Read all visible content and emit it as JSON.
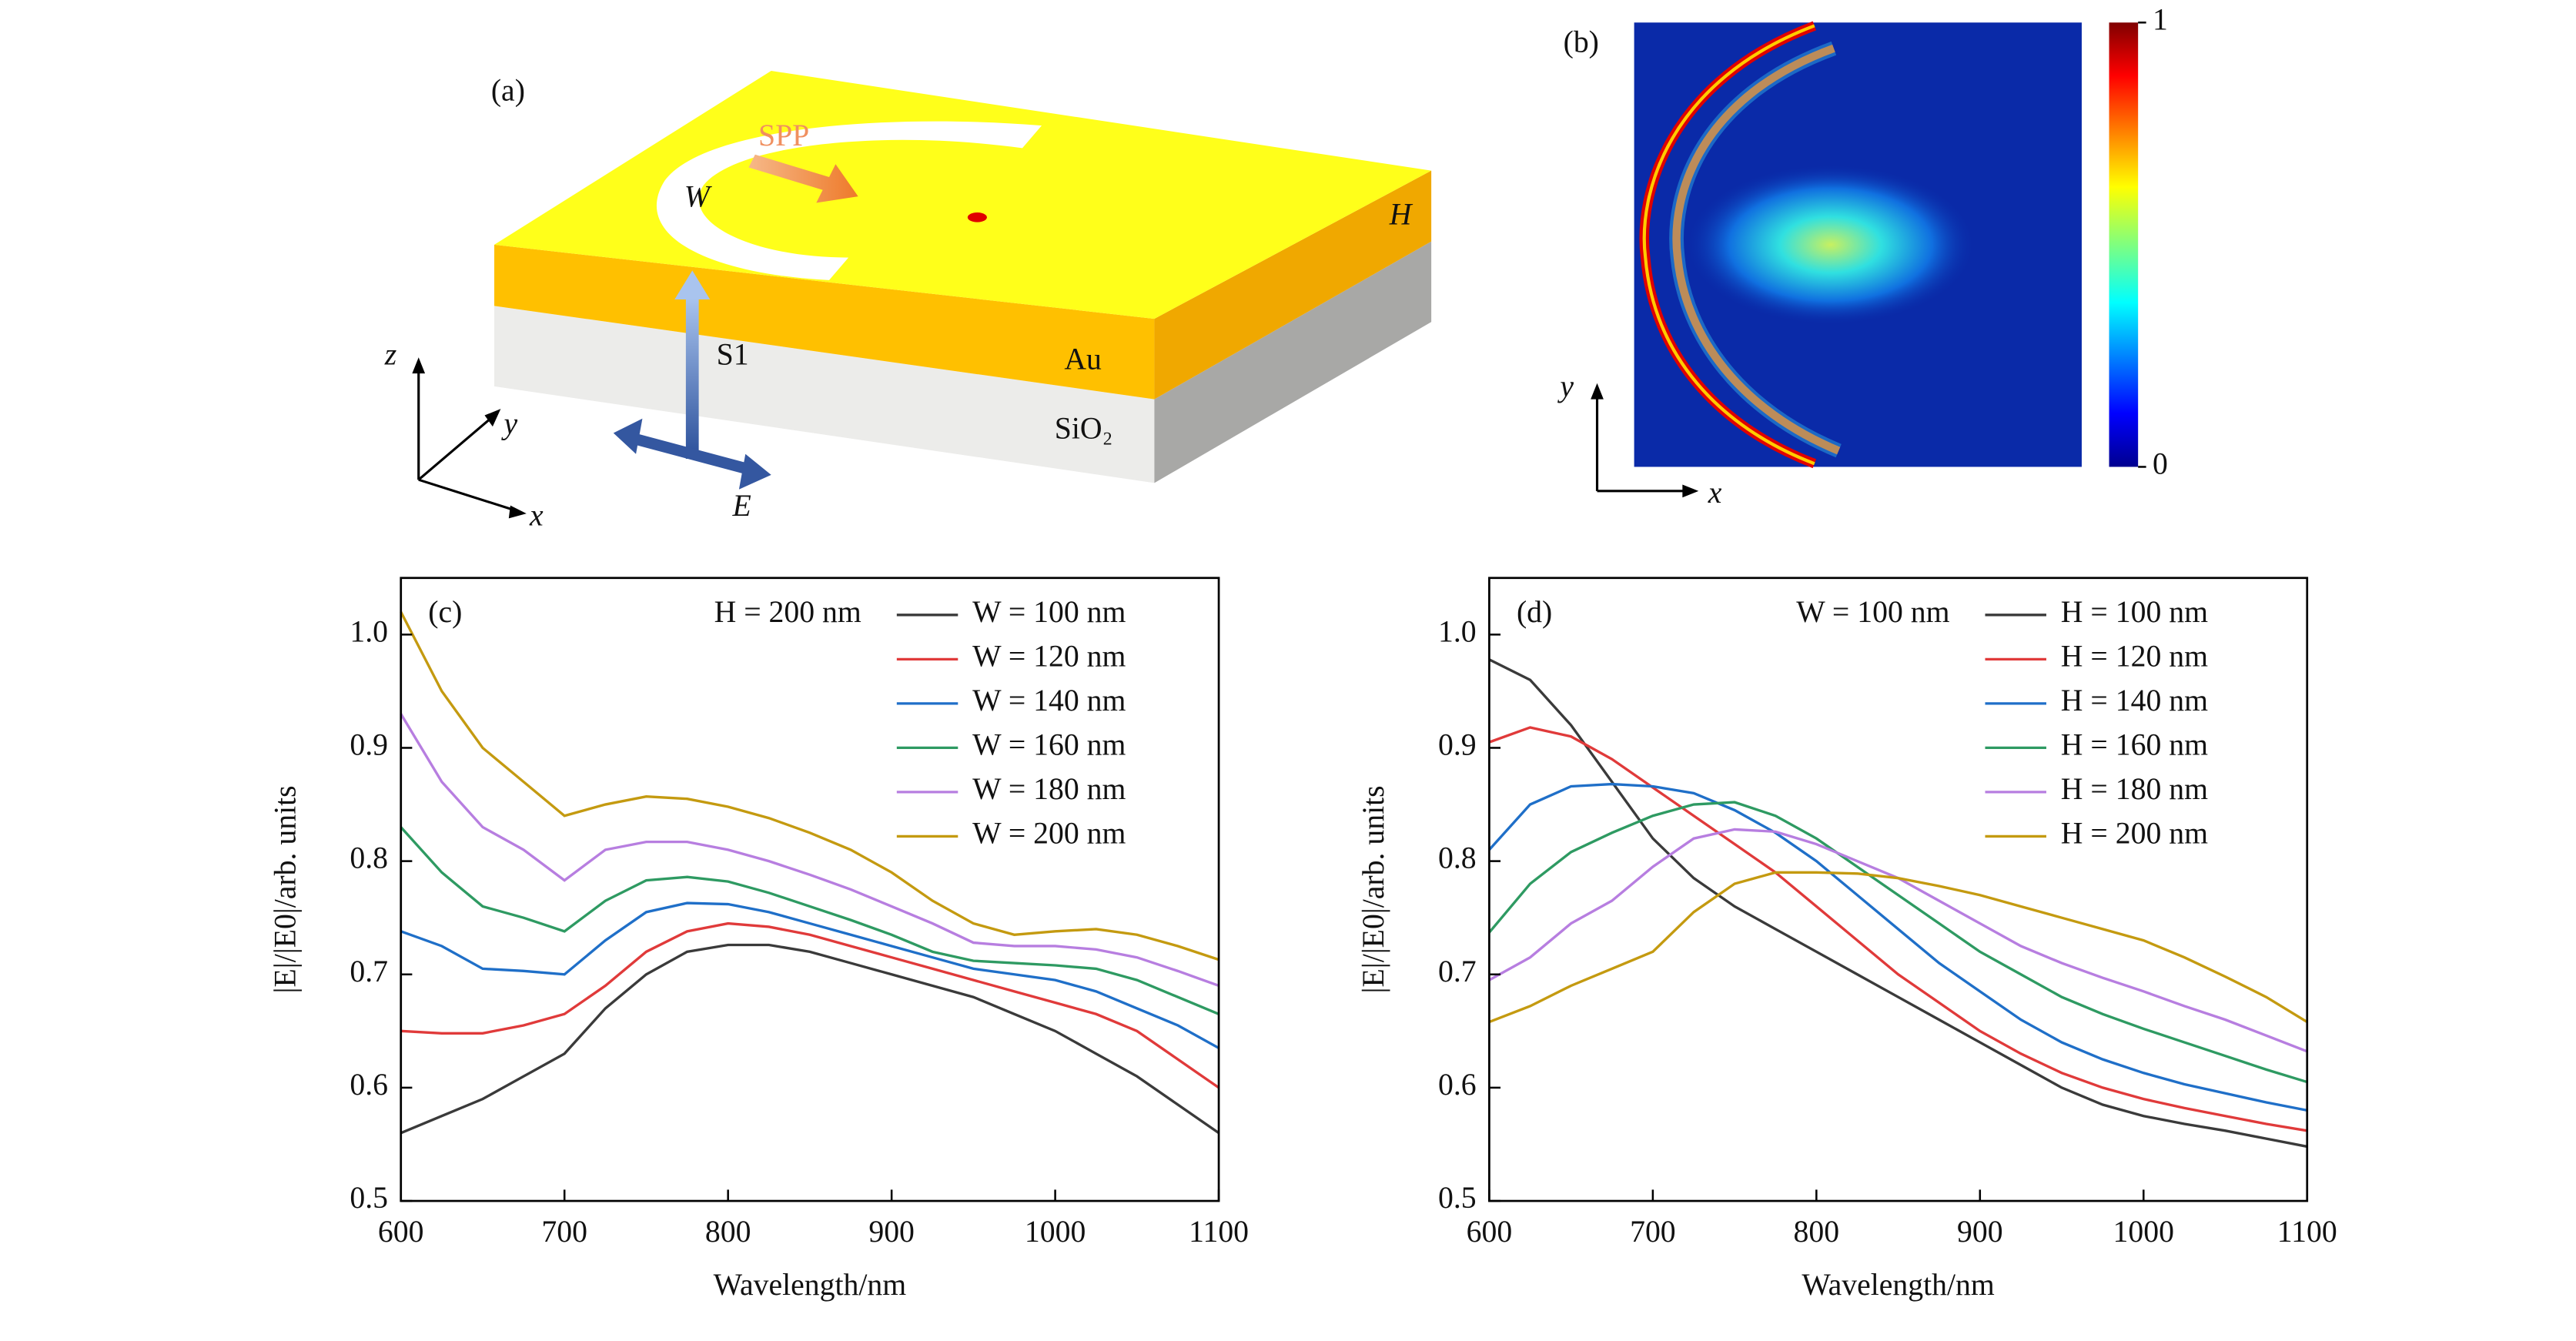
{
  "panel_a": {
    "label": "(a)",
    "spp": "SPP",
    "w": "W",
    "h": "H",
    "au": "Au",
    "s1": "S1",
    "sio2": "SiO₂",
    "e": "E",
    "axis_x": "x",
    "axis_y": "y",
    "axis_z": "z"
  },
  "panel_b": {
    "label": "(b)",
    "axis_x": "x",
    "axis_y": "y",
    "colorbar_ticks": [
      0,
      1
    ]
  },
  "chart_data": [
    {
      "type": "line",
      "panel_label": "(c)",
      "annotation": "H = 200 nm",
      "xlabel": "Wavelength/nm",
      "ylabel": "|E|/|E0|/arb. units",
      "xlim": [
        600,
        1100
      ],
      "ylim": [
        0.5,
        1.05
      ],
      "xticks": [
        600,
        700,
        800,
        900,
        1000,
        1100
      ],
      "yticks": [
        0.5,
        0.6,
        0.7,
        0.8,
        0.9,
        {
          "value": 1,
          "label": "1.0"
        }
      ],
      "x": [
        600,
        625,
        650,
        675,
        700,
        725,
        750,
        775,
        800,
        825,
        850,
        875,
        900,
        925,
        950,
        975,
        1000,
        1025,
        1050,
        1075,
        1100
      ],
      "series": [
        {
          "name": "W = 100 nm",
          "color": "#3a3a3a",
          "values": [
            0.56,
            0.575,
            0.59,
            0.61,
            0.63,
            0.67,
            0.7,
            0.72,
            0.726,
            0.726,
            0.72,
            0.71,
            0.7,
            0.69,
            0.68,
            0.665,
            0.65,
            0.63,
            0.61,
            0.585,
            0.56
          ]
        },
        {
          "name": "W = 120 nm",
          "color": "#e03a3a",
          "values": [
            0.65,
            0.648,
            0.648,
            0.655,
            0.665,
            0.69,
            0.72,
            0.738,
            0.745,
            0.742,
            0.735,
            0.725,
            0.715,
            0.705,
            0.695,
            0.685,
            0.675,
            0.665,
            0.65,
            0.625,
            0.6
          ]
        },
        {
          "name": "W = 140 nm",
          "color": "#1f6fc8",
          "values": [
            0.738,
            0.725,
            0.705,
            0.703,
            0.7,
            0.73,
            0.755,
            0.763,
            0.762,
            0.755,
            0.745,
            0.735,
            0.725,
            0.715,
            0.705,
            0.7,
            0.695,
            0.685,
            0.67,
            0.655,
            0.635
          ]
        },
        {
          "name": "W = 160 nm",
          "color": "#2e9a62",
          "values": [
            0.83,
            0.79,
            0.76,
            0.75,
            0.738,
            0.765,
            0.783,
            0.786,
            0.782,
            0.772,
            0.76,
            0.748,
            0.735,
            0.72,
            0.712,
            0.71,
            0.708,
            0.705,
            0.695,
            0.68,
            0.665
          ]
        },
        {
          "name": "W = 180 nm",
          "color": "#b77ee0",
          "values": [
            0.93,
            0.87,
            0.83,
            0.81,
            0.783,
            0.81,
            0.817,
            0.817,
            0.81,
            0.8,
            0.788,
            0.775,
            0.76,
            0.745,
            0.728,
            0.725,
            0.725,
            0.722,
            0.715,
            0.703,
            0.69
          ]
        },
        {
          "name": "W = 200 nm",
          "color": "#c49a10",
          "values": [
            1.02,
            0.95,
            0.9,
            0.87,
            0.84,
            0.85,
            0.857,
            0.855,
            0.848,
            0.838,
            0.825,
            0.81,
            0.79,
            0.765,
            0.745,
            0.735,
            0.738,
            0.74,
            0.735,
            0.725,
            0.713
          ]
        }
      ]
    },
    {
      "type": "line",
      "panel_label": "(d)",
      "annotation": "W = 100 nm",
      "xlabel": "Wavelength/nm",
      "ylabel": "|E|/|E0|/arb. units",
      "xlim": [
        600,
        1100
      ],
      "ylim": [
        0.5,
        1.05
      ],
      "xticks": [
        600,
        700,
        800,
        900,
        1000,
        1100
      ],
      "yticks": [
        0.5,
        0.6,
        0.7,
        0.8,
        0.9,
        {
          "value": 1,
          "label": "1.0"
        }
      ],
      "x": [
        600,
        625,
        650,
        675,
        700,
        725,
        750,
        775,
        800,
        825,
        850,
        875,
        900,
        925,
        950,
        975,
        1000,
        1025,
        1050,
        1075,
        1100
      ],
      "series": [
        {
          "name": "H = 100 nm",
          "color": "#3a3a3a",
          "values": [
            0.978,
            0.96,
            0.92,
            0.87,
            0.82,
            0.785,
            0.76,
            0.74,
            0.72,
            0.7,
            0.68,
            0.66,
            0.64,
            0.62,
            0.6,
            0.585,
            0.575,
            0.568,
            0.562,
            0.555,
            0.548
          ]
        },
        {
          "name": "H = 120 nm",
          "color": "#e03a3a",
          "values": [
            0.905,
            0.918,
            0.91,
            0.89,
            0.865,
            0.84,
            0.815,
            0.79,
            0.76,
            0.73,
            0.7,
            0.675,
            0.65,
            0.63,
            0.613,
            0.6,
            0.59,
            0.582,
            0.575,
            0.568,
            0.562
          ]
        },
        {
          "name": "H = 140 nm",
          "color": "#1f6fc8",
          "values": [
            0.81,
            0.85,
            0.866,
            0.868,
            0.866,
            0.86,
            0.845,
            0.825,
            0.8,
            0.77,
            0.74,
            0.71,
            0.685,
            0.66,
            0.64,
            0.625,
            0.613,
            0.603,
            0.595,
            0.587,
            0.58
          ]
        },
        {
          "name": "H = 160 nm",
          "color": "#2e9a62",
          "values": [
            0.737,
            0.78,
            0.808,
            0.825,
            0.84,
            0.85,
            0.852,
            0.84,
            0.82,
            0.795,
            0.77,
            0.745,
            0.72,
            0.7,
            0.68,
            0.665,
            0.652,
            0.64,
            0.628,
            0.616,
            0.605
          ]
        },
        {
          "name": "H = 180 nm",
          "color": "#b77ee0",
          "values": [
            0.695,
            0.715,
            0.745,
            0.765,
            0.795,
            0.82,
            0.828,
            0.826,
            0.815,
            0.8,
            0.785,
            0.765,
            0.745,
            0.725,
            0.71,
            0.697,
            0.685,
            0.672,
            0.66,
            0.646,
            0.632
          ]
        },
        {
          "name": "H = 200 nm",
          "color": "#c49a10",
          "values": [
            0.658,
            0.672,
            0.69,
            0.705,
            0.72,
            0.755,
            0.78,
            0.79,
            0.79,
            0.789,
            0.785,
            0.778,
            0.77,
            0.76,
            0.75,
            0.74,
            0.73,
            0.715,
            0.698,
            0.68,
            0.658
          ]
        }
      ]
    }
  ]
}
